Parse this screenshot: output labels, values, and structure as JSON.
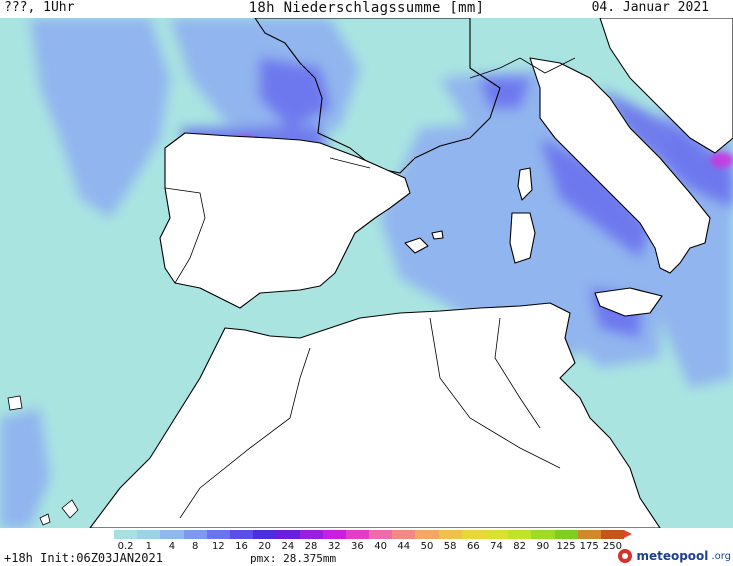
{
  "header": {
    "left": "???, 1Uhr",
    "title": "18h Niederschlagssumme [mm]",
    "date": "04. Januar 2021"
  },
  "legend": {
    "labels": [
      "0.2",
      "1",
      "4",
      "8",
      "12",
      "16",
      "20",
      "24",
      "28",
      "32",
      "36",
      "40",
      "44",
      "50",
      "58",
      "66",
      "74",
      "82",
      "90",
      "125",
      "175",
      "250"
    ],
    "colors": [
      "#a6e1df",
      "#9cd3e6",
      "#8fb9ee",
      "#7f98f0",
      "#6a74ee",
      "#5a4fe6",
      "#4a2ee0",
      "#6a1fe0",
      "#9a1ee2",
      "#c91ee0",
      "#e33cc6",
      "#ef6aa8",
      "#f18a84",
      "#f2a763",
      "#efc14a",
      "#e9d63a",
      "#d8e12f",
      "#bfe329",
      "#9edb25",
      "#7fcf21",
      "#d0882a",
      "#c4561c"
    ],
    "arrow_color": "#e1462f"
  },
  "footer": {
    "init": "+18h Init:06Z03JAN2021",
    "pmx": "pmx: 28.375mm",
    "logo_main": "meteopool",
    "logo_suffix": ".org"
  },
  "map": {
    "land_color": "#ffffff",
    "light_precip": "#a9e4e1",
    "mid_precip": "#8fb0f0",
    "heavy_precip": "#6a72ee",
    "peak_precip": "#cc33dd",
    "coast_color": "#000000"
  }
}
